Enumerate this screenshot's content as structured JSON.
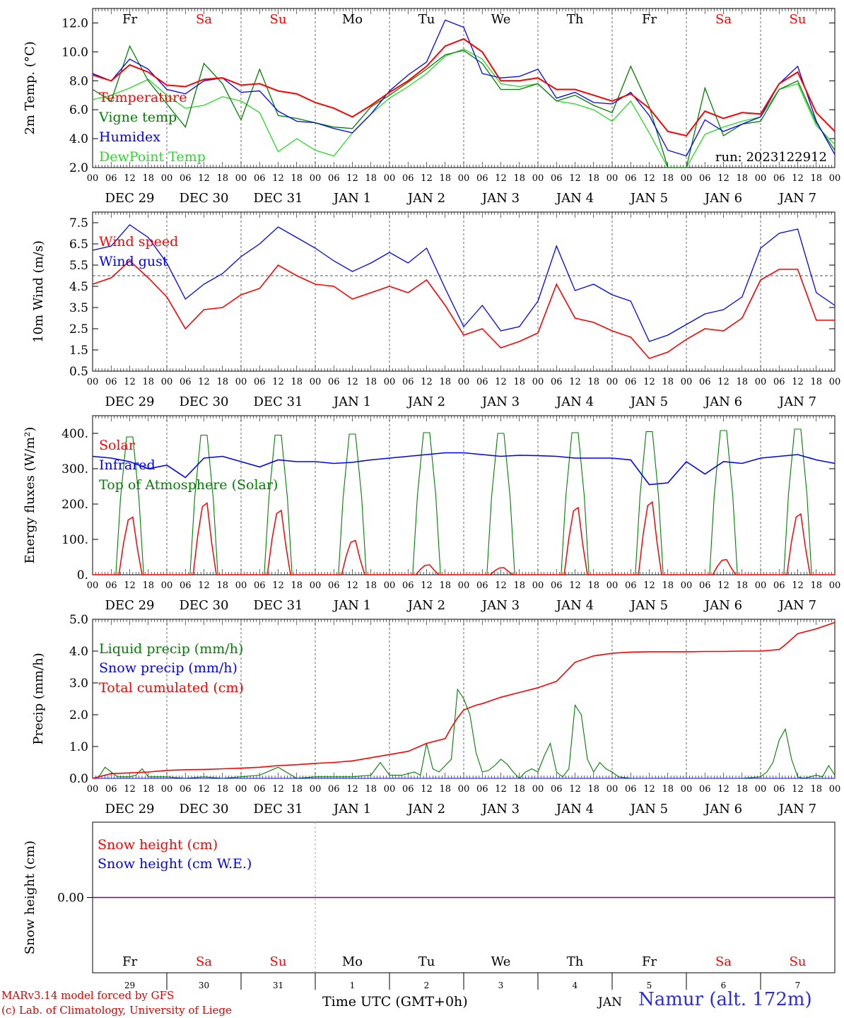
{
  "header": {
    "day_names": [
      "Fr",
      "Sa",
      "Su",
      "Mo",
      "Tu",
      "We",
      "Th",
      "Fr",
      "Sa",
      "Su"
    ],
    "weekend_flags": [
      false,
      true,
      true,
      false,
      false,
      false,
      false,
      false,
      true,
      true
    ],
    "date_labels": [
      "DEC 29",
      "DEC 30",
      "DEC 31",
      "JAN  1",
      "JAN  2",
      "JAN  3",
      "JAN  4",
      "JAN  5",
      "JAN  6",
      "JAN  7"
    ],
    "hour_ticks": [
      "00",
      "06",
      "12",
      "18"
    ],
    "hour_tick_last": "00",
    "snow_day_numbers": [
      "29",
      "30",
      "31",
      "1",
      "2",
      "3",
      "4",
      "5",
      "6",
      "7"
    ],
    "run_label": "run: 2023122912"
  },
  "colors": {
    "red": "#ff0000",
    "green": "#008000",
    "blue": "#0000ff",
    "lightgreen": "#22dd22",
    "purple": "#800080"
  },
  "footer": {
    "credit_1": "MARv3.14 model forced by GFS",
    "credit_2": "(c) Lab. of Climatology, University of Liege",
    "time_label": "Time UTC (GMT+0h)",
    "month_label": "JAN",
    "station": "Namur (alt. 172m)"
  },
  "chart_data": [
    {
      "type": "line",
      "ylabel": "2m Temp. (°C)",
      "ylim": [
        2,
        13
      ],
      "yticks": [
        "2.0",
        "4.0",
        "6.0",
        "8.0",
        "10.0",
        "12.0"
      ],
      "xlim_hours": [
        0,
        240
      ],
      "grid": "vertical dashed at midnights",
      "series": [
        {
          "name": "Temperature",
          "color": "red",
          "x": [
            0,
            6,
            12,
            18,
            24,
            30,
            36,
            42,
            48,
            54,
            60,
            66,
            72,
            78,
            84,
            90,
            96,
            102,
            108,
            114,
            120,
            126,
            132,
            138,
            144,
            150,
            156,
            162,
            168,
            174,
            180,
            186,
            192,
            198,
            204,
            210,
            216,
            222,
            228,
            234,
            240
          ],
          "y": [
            8.4,
            8.0,
            9.1,
            8.6,
            7.7,
            7.6,
            8.1,
            8.2,
            7.7,
            7.8,
            7.3,
            7.1,
            6.5,
            6.1,
            5.5,
            6.3,
            7.2,
            8.0,
            9.0,
            10.4,
            10.9,
            10.0,
            8.0,
            8.0,
            8.2,
            7.4,
            7.4,
            7.0,
            6.6,
            7.1,
            6.1,
            4.5,
            4.2,
            5.9,
            5.4,
            5.8,
            5.7,
            7.8,
            8.6,
            5.8,
            4.5
          ]
        },
        {
          "name": "Vigne temp",
          "color": "green",
          "x": [
            0,
            6,
            12,
            18,
            24,
            30,
            36,
            42,
            48,
            54,
            60,
            66,
            72,
            78,
            84,
            90,
            96,
            102,
            108,
            114,
            120,
            126,
            132,
            138,
            144,
            150,
            156,
            162,
            168,
            174,
            180,
            186,
            192,
            198,
            204,
            210,
            216,
            222,
            228,
            234,
            240
          ],
          "y": [
            7.4,
            6.6,
            10.4,
            8.0,
            6.4,
            4.8,
            9.2,
            7.8,
            5.3,
            8.8,
            5.6,
            5.4,
            5.1,
            4.8,
            4.7,
            6.2,
            7.0,
            7.9,
            8.8,
            9.8,
            10.1,
            9.2,
            7.4,
            7.4,
            7.8,
            6.6,
            7.0,
            6.3,
            5.8,
            9.0,
            6.2,
            1.2,
            1.8,
            7.5,
            4.2,
            5.0,
            5.2,
            7.4,
            8.0,
            5.1,
            3.2
          ]
        },
        {
          "name": "Humidex",
          "color": "blue",
          "x": [
            0,
            6,
            12,
            18,
            24,
            30,
            36,
            42,
            48,
            54,
            60,
            66,
            72,
            78,
            84,
            90,
            96,
            102,
            108,
            114,
            120,
            126,
            132,
            138,
            144,
            150,
            156,
            162,
            168,
            174,
            180,
            186,
            192,
            198,
            204,
            210,
            216,
            222,
            228,
            234,
            240
          ],
          "y": [
            8.5,
            8.0,
            9.5,
            8.8,
            7.4,
            7.1,
            8.0,
            8.2,
            7.2,
            7.3,
            5.9,
            5.2,
            5.1,
            4.7,
            4.4,
            5.7,
            7.3,
            8.4,
            9.3,
            12.2,
            11.7,
            8.5,
            8.2,
            8.3,
            8.8,
            6.8,
            7.2,
            6.5,
            6.4,
            7.2,
            5.6,
            3.2,
            2.8,
            5.3,
            4.5,
            5.0,
            5.5,
            7.8,
            9.0,
            5.2,
            2.9
          ]
        },
        {
          "name": "DewPoint Temp",
          "color": "lightgreen",
          "x": [
            0,
            6,
            12,
            18,
            24,
            30,
            36,
            42,
            48,
            54,
            60,
            66,
            72,
            78,
            84,
            90,
            96,
            102,
            108,
            114,
            120,
            126,
            132,
            138,
            144,
            150,
            156,
            162,
            168,
            174,
            180,
            186,
            192,
            198,
            204,
            210,
            216,
            222,
            228,
            234,
            240
          ],
          "y": [
            6.7,
            7.0,
            7.5,
            8.1,
            7.0,
            6.1,
            6.3,
            6.9,
            6.6,
            5.8,
            3.1,
            4.0,
            3.2,
            2.8,
            4.4,
            5.7,
            6.8,
            7.6,
            8.5,
            9.7,
            10.2,
            9.5,
            7.8,
            7.6,
            7.8,
            6.6,
            6.4,
            6.0,
            5.2,
            6.6,
            4.4,
            2.0,
            1.6,
            4.3,
            4.8,
            5.2,
            5.5,
            7.4,
            7.8,
            4.9,
            3.6
          ]
        }
      ]
    },
    {
      "type": "line",
      "ylabel": "10m Wind (m/s)",
      "ylim": [
        0.5,
        8
      ],
      "yticks": [
        "0.5",
        "1.5",
        "2.5",
        "3.5",
        "4.5",
        "5.5",
        "6.5",
        "7.5"
      ],
      "reference_line": 5.0,
      "series": [
        {
          "name": "Wind speed",
          "color": "red",
          "x": [
            0,
            6,
            12,
            18,
            24,
            30,
            36,
            42,
            48,
            54,
            60,
            66,
            72,
            78,
            84,
            90,
            96,
            102,
            108,
            114,
            120,
            126,
            132,
            138,
            144,
            150,
            156,
            162,
            168,
            174,
            180,
            186,
            192,
            198,
            204,
            210,
            216,
            222,
            228,
            234,
            240
          ],
          "y": [
            4.6,
            4.9,
            5.7,
            4.9,
            4.0,
            2.5,
            3.4,
            3.5,
            4.1,
            4.4,
            5.5,
            5.0,
            4.6,
            4.5,
            3.9,
            4.2,
            4.5,
            4.2,
            4.8,
            3.6,
            2.2,
            2.5,
            1.6,
            1.9,
            2.3,
            4.6,
            3.0,
            2.8,
            2.4,
            2.1,
            1.1,
            1.4,
            2.0,
            2.5,
            2.4,
            3.0,
            4.8,
            5.3,
            5.3,
            2.9,
            2.9
          ]
        },
        {
          "name": "Wind gust",
          "color": "blue",
          "x": [
            0,
            6,
            12,
            18,
            24,
            30,
            36,
            42,
            48,
            54,
            60,
            66,
            72,
            78,
            84,
            90,
            96,
            102,
            108,
            114,
            120,
            126,
            132,
            138,
            144,
            150,
            156,
            162,
            168,
            174,
            180,
            186,
            192,
            198,
            204,
            210,
            216,
            222,
            228,
            234,
            240
          ],
          "y": [
            6.2,
            6.4,
            7.4,
            6.8,
            5.6,
            3.9,
            4.6,
            5.1,
            5.9,
            6.5,
            7.3,
            6.8,
            6.3,
            5.7,
            5.2,
            5.6,
            6.1,
            5.6,
            6.3,
            4.4,
            2.6,
            3.6,
            2.4,
            2.6,
            3.8,
            6.4,
            4.3,
            4.6,
            4.1,
            3.8,
            1.9,
            2.2,
            2.7,
            3.2,
            3.4,
            4.0,
            6.3,
            7.0,
            7.2,
            4.2,
            3.6
          ]
        }
      ]
    },
    {
      "type": "area",
      "ylabel": "Energy fluxes (W/m²)",
      "ylim": [
        0,
        450
      ],
      "yticks": [
        "0.",
        "100.",
        "200.",
        "300.",
        "400."
      ],
      "infrared": {
        "name": "Infrared",
        "color": "blue",
        "x": [
          0,
          6,
          12,
          18,
          24,
          30,
          36,
          42,
          48,
          54,
          60,
          66,
          72,
          78,
          84,
          90,
          96,
          102,
          108,
          114,
          120,
          126,
          132,
          138,
          144,
          150,
          156,
          162,
          168,
          174,
          180,
          186,
          192,
          198,
          204,
          210,
          216,
          222,
          228,
          234,
          240
        ],
        "y": [
          335,
          330,
          320,
          300,
          310,
          275,
          330,
          335,
          320,
          305,
          325,
          320,
          320,
          315,
          318,
          325,
          330,
          335,
          340,
          345,
          345,
          340,
          335,
          338,
          337,
          335,
          330,
          330,
          330,
          325,
          255,
          260,
          320,
          285,
          320,
          315,
          330,
          335,
          340,
          325,
          315
        ]
      },
      "daily_peaks": {
        "solar_max": [
          163,
          203,
          182,
          97,
          28,
          20,
          190,
          206,
          43,
          172
        ],
        "toa_max": [
          390,
          395,
          395,
          398,
          402,
          400,
          402,
          405,
          408,
          412
        ]
      },
      "series_names": {
        "solar": "Solar",
        "toa": "Top of Atmosphere (Solar)"
      }
    },
    {
      "type": "line",
      "ylabel": "Precip (mm/h)",
      "ylim": [
        0,
        5
      ],
      "yticks": [
        "0.0",
        "1.0",
        "2.0",
        "3.0",
        "4.0",
        "5.0"
      ],
      "series": [
        {
          "name": "Liquid precip (mm/h)",
          "color": "green",
          "x": [
            0,
            2,
            4,
            6,
            8,
            10,
            12,
            14,
            16,
            18,
            20,
            24,
            30,
            36,
            42,
            48,
            54,
            60,
            66,
            72,
            78,
            84,
            90,
            93,
            96,
            100,
            102,
            104,
            106,
            108,
            110,
            112,
            114,
            116,
            118,
            120,
            122,
            124,
            126,
            128,
            130,
            132,
            134,
            136,
            138,
            140,
            142,
            144,
            146,
            148,
            150,
            152,
            154,
            156,
            158,
            160,
            162,
            164,
            166,
            168,
            170,
            174,
            180,
            186,
            192,
            198,
            204,
            210,
            216,
            218,
            220,
            222,
            224,
            226,
            228,
            230,
            232,
            234,
            236,
            238,
            240
          ],
          "y": [
            0,
            0.05,
            0.35,
            0.2,
            0.05,
            0.05,
            0.05,
            0.1,
            0.3,
            0.05,
            0.05,
            0.05,
            0,
            0.05,
            0,
            0.05,
            0.1,
            0.35,
            0,
            0.05,
            0.05,
            0.05,
            0.1,
            0.5,
            0.1,
            0.1,
            0.15,
            0.2,
            0.1,
            1.1,
            0.3,
            0.2,
            0.4,
            0.6,
            2.8,
            2.5,
            2.0,
            0.8,
            0.2,
            0.25,
            0.4,
            0.6,
            0.45,
            0.2,
            0.0,
            0.2,
            0.3,
            0.2,
            0.7,
            1.1,
            0.2,
            0.05,
            0.3,
            2.3,
            2.0,
            0.6,
            0.2,
            0.5,
            0.3,
            0.2,
            0.05,
            0,
            0,
            0,
            0,
            0,
            0,
            0,
            0.05,
            0.2,
            0.5,
            1.2,
            1.55,
            0.6,
            0.05,
            0,
            0.05,
            0.1,
            0.05,
            0.4,
            0.1
          ]
        },
        {
          "name": "Snow precip (mm/h)",
          "color": "blue",
          "x": [
            0,
            240
          ],
          "y": [
            0,
            0
          ]
        },
        {
          "name": "Total cumulated (cm)",
          "color": "red",
          "x": [
            0,
            6,
            12,
            18,
            24,
            30,
            36,
            42,
            48,
            54,
            60,
            66,
            72,
            78,
            84,
            90,
            96,
            102,
            108,
            114,
            116,
            118,
            120,
            124,
            126,
            132,
            138,
            144,
            150,
            156,
            162,
            168,
            174,
            180,
            186,
            192,
            198,
            204,
            210,
            216,
            222,
            224,
            228,
            234,
            240
          ],
          "y": [
            0,
            0.15,
            0.17,
            0.2,
            0.25,
            0.27,
            0.28,
            0.3,
            0.32,
            0.35,
            0.4,
            0.43,
            0.47,
            0.5,
            0.55,
            0.65,
            0.75,
            0.85,
            1.1,
            1.25,
            1.6,
            1.9,
            2.15,
            2.3,
            2.35,
            2.55,
            2.7,
            2.85,
            3.05,
            3.65,
            3.85,
            3.93,
            3.97,
            3.98,
            3.98,
            3.98,
            3.99,
            3.99,
            4.0,
            4.0,
            4.05,
            4.2,
            4.55,
            4.7,
            4.9
          ]
        }
      ]
    },
    {
      "type": "line",
      "ylabel": "Snow height (cm)",
      "yticks": [
        "0.00"
      ],
      "series": [
        {
          "name": "Snow height (cm)",
          "color": "red",
          "x": [
            0,
            240
          ],
          "y": [
            0,
            0
          ]
        },
        {
          "name": "Snow height (cm W.E.)",
          "color": "blue",
          "x": [
            0,
            240
          ],
          "y": [
            0,
            0
          ]
        }
      ]
    }
  ]
}
